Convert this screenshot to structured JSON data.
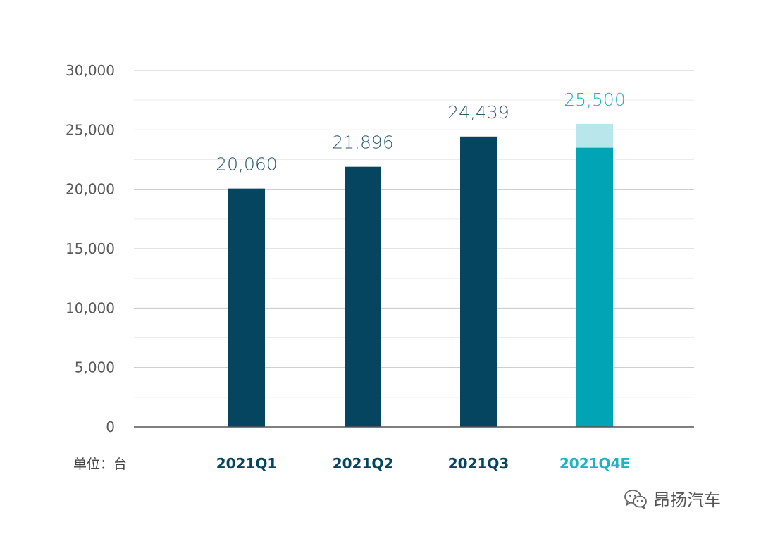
{
  "chart_data": {
    "type": "bar",
    "categories": [
      "2021Q1",
      "2021Q2",
      "2021Q3",
      "2021Q4E"
    ],
    "values": [
      20060,
      21896,
      24439,
      25500
    ],
    "value_labels": [
      "20,060",
      "21,896",
      "24,439",
      "25,500"
    ],
    "q4e_lower_segment": 23500,
    "y_ticks": [
      "0",
      "5,000",
      "10,000",
      "15,000",
      "20,000",
      "25,000",
      "30,000"
    ],
    "y_tick_values": [
      0,
      5000,
      10000,
      15000,
      20000,
      25000,
      30000
    ],
    "ylim": [
      0,
      30000
    ],
    "grid": true,
    "unit_note": "单位：台"
  },
  "colors": {
    "actual_bar": "#06455f",
    "estimate_bar": "#00a4b5",
    "estimate_upper": "#b9e6ea",
    "actual_text": "#2d5b6e",
    "estimate_text": "#1fb2c1",
    "axis": "#555555",
    "grid_major": "#c8c8c8",
    "grid_minor": "#ececec"
  },
  "watermark": {
    "text": "昂扬汽车",
    "icon": "wechat-icon"
  }
}
